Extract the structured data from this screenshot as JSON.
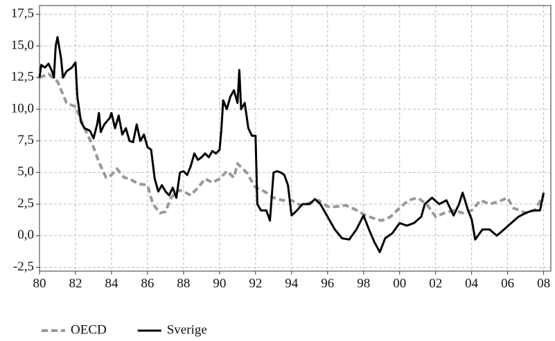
{
  "chart_data": {
    "type": "line",
    "xlim": [
      1980,
      2008.4
    ],
    "ylim": [
      -2.8,
      18.2
    ],
    "xticks": [
      {
        "value": 1980,
        "label": "80"
      },
      {
        "value": 1982,
        "label": "82"
      },
      {
        "value": 1984,
        "label": "84"
      },
      {
        "value": 1986,
        "label": "86"
      },
      {
        "value": 1988,
        "label": "88"
      },
      {
        "value": 1990,
        "label": "90"
      },
      {
        "value": 1992,
        "label": "92"
      },
      {
        "value": 1994,
        "label": "94"
      },
      {
        "value": 1996,
        "label": "96"
      },
      {
        "value": 1998,
        "label": "98"
      },
      {
        "value": 2000,
        "label": "00"
      },
      {
        "value": 2002,
        "label": "02"
      },
      {
        "value": 2004,
        "label": "04"
      },
      {
        "value": 2006,
        "label": "06"
      },
      {
        "value": 2008,
        "label": "08"
      }
    ],
    "yticks": [
      {
        "value": -2.5,
        "label": "-2,5"
      },
      {
        "value": 0,
        "label": "0,0"
      },
      {
        "value": 2.5,
        "label": "2,5"
      },
      {
        "value": 5,
        "label": "5,0"
      },
      {
        "value": 7.5,
        "label": "7,5"
      },
      {
        "value": 10,
        "label": "10,0"
      },
      {
        "value": 12.5,
        "label": "12,5"
      },
      {
        "value": 15,
        "label": "15,0"
      },
      {
        "value": 17.5,
        "label": "17,5"
      }
    ],
    "grid": true,
    "legend": "bottom-left",
    "series": [
      {
        "name": "OECD",
        "color": "#999999",
        "dashed": true,
        "x": [
          1980.0,
          1980.5,
          1981.0,
          1981.5,
          1982.0,
          1982.5,
          1983.0,
          1983.3,
          1983.7,
          1984.0,
          1984.3,
          1984.7,
          1985.0,
          1985.5,
          1986.0,
          1986.3,
          1986.7,
          1987.0,
          1987.3,
          1987.7,
          1988.0,
          1988.4,
          1988.8,
          1989.2,
          1989.6,
          1990.0,
          1990.4,
          1990.8,
          1991.0,
          1991.5,
          1992.0,
          1992.5,
          1993.0,
          1993.5,
          1994.0,
          1994.5,
          1995.0,
          1995.5,
          1996.0,
          1996.5,
          1997.0,
          1997.5,
          1998.0,
          1998.5,
          1999.0,
          1999.5,
          2000.0,
          2000.5,
          2001.0,
          2001.5,
          2002.0,
          2002.5,
          2003.0,
          2003.5,
          2004.0,
          2004.5,
          2005.0,
          2005.5,
          2006.0,
          2006.3,
          2006.7,
          2007.0,
          2007.5,
          2008.0
        ],
        "values": [
          12.5,
          12.8,
          12.2,
          10.5,
          10.2,
          8.5,
          7.0,
          5.8,
          4.6,
          4.8,
          5.3,
          4.6,
          4.5,
          4.1,
          4.0,
          2.5,
          1.8,
          1.9,
          3.0,
          3.6,
          3.5,
          3.2,
          3.8,
          4.5,
          4.2,
          4.5,
          5.1,
          4.6,
          5.7,
          5.0,
          3.8,
          3.5,
          3.0,
          2.8,
          2.8,
          2.4,
          2.6,
          2.8,
          2.3,
          2.3,
          2.4,
          2.1,
          1.7,
          1.4,
          1.2,
          1.5,
          2.2,
          2.8,
          3.0,
          2.5,
          1.5,
          1.8,
          2.0,
          1.8,
          2.0,
          2.8,
          2.5,
          2.7,
          3.0,
          2.2,
          2.0,
          1.8,
          2.0,
          3.2
        ]
      },
      {
        "name": "Sverige",
        "color": "#000000",
        "dashed": false,
        "x": [
          1980.0,
          1980.1,
          1980.3,
          1980.5,
          1980.7,
          1980.8,
          1980.9,
          1981.0,
          1981.2,
          1981.3,
          1981.5,
          1981.8,
          1982.0,
          1982.1,
          1982.3,
          1982.5,
          1982.8,
          1983.0,
          1983.2,
          1983.3,
          1983.4,
          1983.6,
          1983.9,
          1984.0,
          1984.2,
          1984.4,
          1984.6,
          1984.8,
          1985.0,
          1985.2,
          1985.4,
          1985.6,
          1985.8,
          1986.0,
          1986.2,
          1986.4,
          1986.6,
          1986.8,
          1987.0,
          1987.2,
          1987.4,
          1987.6,
          1987.8,
          1988.0,
          1988.2,
          1988.4,
          1988.6,
          1988.8,
          1989.0,
          1989.2,
          1989.4,
          1989.6,
          1989.8,
          1990.0,
          1990.1,
          1990.2,
          1990.4,
          1990.6,
          1990.8,
          1991.0,
          1991.1,
          1991.2,
          1991.4,
          1991.6,
          1991.8,
          1992.0,
          1992.1,
          1992.3,
          1992.6,
          1992.8,
          1993.0,
          1993.2,
          1993.4,
          1993.6,
          1993.8,
          1994.0,
          1994.3,
          1994.6,
          1995.0,
          1995.3,
          1995.6,
          1996.0,
          1996.4,
          1996.8,
          1997.2,
          1997.6,
          1998.0,
          1998.3,
          1998.6,
          1998.9,
          1999.2,
          1999.6,
          2000.0,
          2000.4,
          2000.8,
          2001.2,
          2001.4,
          2001.8,
          2002.2,
          2002.6,
          2003.0,
          2003.3,
          2003.5,
          2003.8,
          2004.0,
          2004.2,
          2004.6,
          2005.0,
          2005.4,
          2005.8,
          2006.2,
          2006.6,
          2007.0,
          2007.4,
          2007.8,
          2008.0
        ],
        "values": [
          12.5,
          13.5,
          13.3,
          13.6,
          13.0,
          12.5,
          15.0,
          15.7,
          14.0,
          12.5,
          13.0,
          13.3,
          13.7,
          11.0,
          9.0,
          8.5,
          8.3,
          7.7,
          8.8,
          9.7,
          8.2,
          8.8,
          9.3,
          9.7,
          8.5,
          9.5,
          8.0,
          8.5,
          7.5,
          7.4,
          8.8,
          7.5,
          8.0,
          7.0,
          6.8,
          4.5,
          3.5,
          4.0,
          3.5,
          3.2,
          3.8,
          3.0,
          5.0,
          5.1,
          4.8,
          5.5,
          6.5,
          6.0,
          6.2,
          6.5,
          6.2,
          6.7,
          6.5,
          6.8,
          8.4,
          10.7,
          10.0,
          11.0,
          11.5,
          10.5,
          13.1,
          10.0,
          10.5,
          8.5,
          7.9,
          7.9,
          2.5,
          2.0,
          2.0,
          1.2,
          5.0,
          5.1,
          5.0,
          4.8,
          4.0,
          1.6,
          2.0,
          2.5,
          2.5,
          2.9,
          2.5,
          1.5,
          0.5,
          -0.2,
          -0.3,
          0.5,
          1.6,
          0.5,
          -0.5,
          -1.3,
          -0.2,
          0.2,
          1.0,
          0.8,
          1.0,
          1.5,
          2.5,
          3.0,
          2.5,
          2.8,
          1.6,
          2.5,
          3.4,
          2.0,
          1.3,
          -0.3,
          0.5,
          0.5,
          0.0,
          0.5,
          1.0,
          1.5,
          1.8,
          2.0,
          2.0,
          3.4
        ]
      }
    ]
  }
}
